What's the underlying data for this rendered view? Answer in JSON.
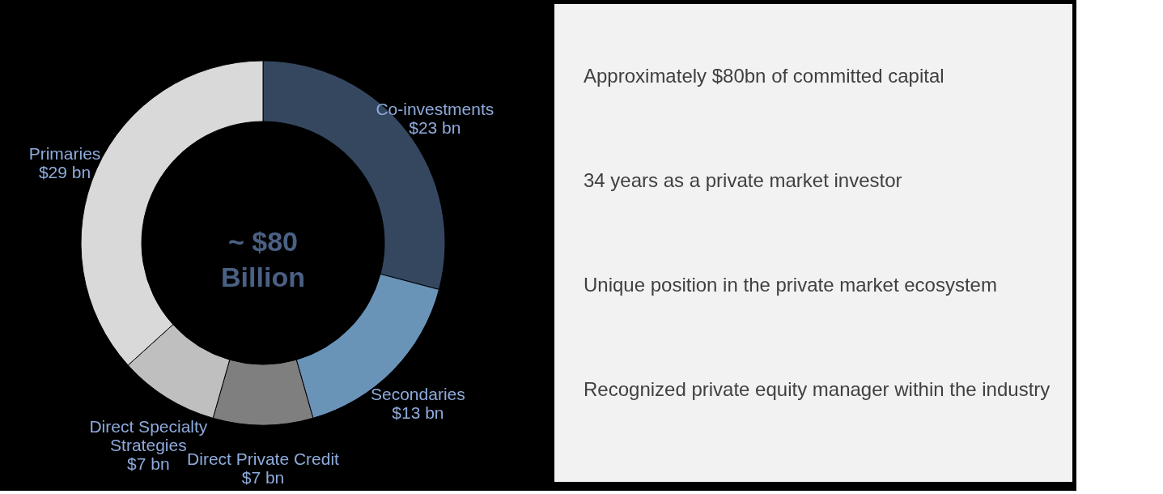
{
  "chart_data": [
    {
      "type": "donut",
      "categories": [
        "Co-investments",
        "Secondaries",
        "Direct Private Credit",
        "Direct Specialty Strategies",
        "Primaries"
      ],
      "values": [
        23,
        13,
        7,
        7,
        29
      ],
      "colors": [
        "#34475f",
        "#6a93b8",
        "#7f7f7f",
        "#bfbfbf",
        "#d9d9d9"
      ],
      "value_labels": [
        "$23 bn",
        "$13 bn",
        "$7 bn",
        "$7 bn",
        "$29 bn"
      ],
      "annotations": [
        "~ $80 Billion"
      ]
    },
    {
      "type": "other",
      "annotations": [
        "Approximately $80bn of committed capital",
        "34 years as a private market investor",
        "Unique position in the private market ecosystem",
        "Recognized private equity manager within the industry"
      ]
    }
  ]
}
